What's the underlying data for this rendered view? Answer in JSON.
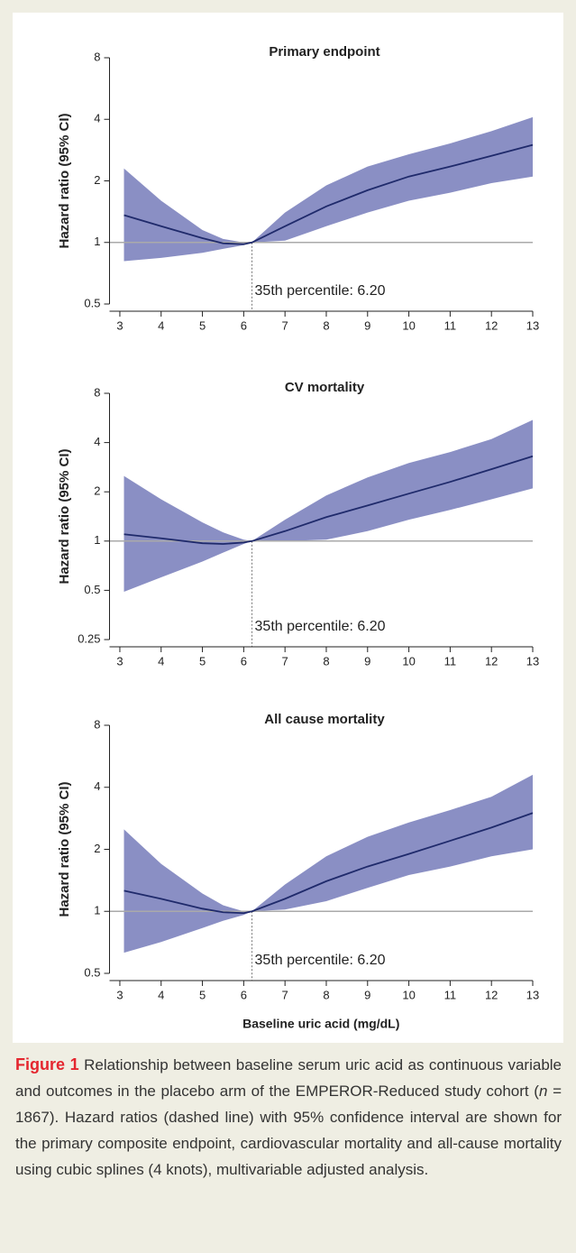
{
  "chart_data": [
    {
      "type": "spline-band",
      "title": "Primary endpoint",
      "ylabel": "Hazard ratio (95% CI)",
      "x": [
        3.1,
        4,
        5,
        5.5,
        6,
        6.2,
        7,
        8,
        9,
        10,
        11,
        12,
        13
      ],
      "values": [
        1.36,
        1.2,
        1.05,
        0.99,
        0.98,
        1,
        1.2,
        1.5,
        1.8,
        2.1,
        2.35,
        2.65,
        3.0
      ],
      "upper": [
        2.3,
        1.6,
        1.15,
        1.04,
        1.0,
        1,
        1.4,
        1.9,
        2.35,
        2.7,
        3.05,
        3.5,
        4.1
      ],
      "lower": [
        0.81,
        0.84,
        0.89,
        0.93,
        0.97,
        1,
        1.02,
        1.2,
        1.4,
        1.6,
        1.75,
        1.95,
        2.1
      ],
      "line_color": "#1f2a6b",
      "band_color": "#8a8fc4",
      "xlim": [
        2.75,
        13
      ],
      "xticks": [
        3,
        4,
        5,
        6,
        7,
        8,
        9,
        10,
        11,
        12,
        13
      ],
      "ylim": [
        0.5,
        8
      ],
      "yticks": [
        0.5,
        1,
        2,
        4,
        8
      ],
      "ylog": true,
      "reference_y": 1,
      "annotation": {
        "text": "35th percentile: 6.20",
        "x": 6.2
      }
    },
    {
      "type": "spline-band",
      "title": "CV mortality",
      "ylabel": "Hazard ratio (95% CI)",
      "x": [
        3.1,
        4,
        5,
        5.5,
        6,
        6.2,
        7,
        8,
        9,
        10,
        11,
        12,
        13
      ],
      "values": [
        1.1,
        1.04,
        0.97,
        0.96,
        0.98,
        1,
        1.15,
        1.4,
        1.65,
        1.95,
        2.3,
        2.75,
        3.3
      ],
      "upper": [
        2.5,
        1.8,
        1.3,
        1.13,
        1.02,
        1,
        1.35,
        1.9,
        2.45,
        3.0,
        3.5,
        4.2,
        5.5
      ],
      "lower": [
        0.49,
        0.6,
        0.75,
        0.85,
        0.96,
        1,
        1.0,
        1.02,
        1.15,
        1.35,
        1.55,
        1.8,
        2.1
      ],
      "line_color": "#1f2a6b",
      "band_color": "#8a8fc4",
      "xlim": [
        2.75,
        13
      ],
      "xticks": [
        3,
        4,
        5,
        6,
        7,
        8,
        9,
        10,
        11,
        12,
        13
      ],
      "ylim": [
        0.25,
        8
      ],
      "yticks": [
        0.25,
        0.5,
        1,
        2,
        4,
        8
      ],
      "ylog": true,
      "reference_y": 1,
      "annotation": {
        "text": "35th percentile: 6.20",
        "x": 6.2
      }
    },
    {
      "type": "spline-band",
      "title": "All cause mortality",
      "ylabel": "Hazard ratio (95% CI)",
      "xlabel": "Baseline uric acid (mg/dL)",
      "x": [
        3.1,
        4,
        5,
        5.5,
        6,
        6.2,
        7,
        8,
        9,
        10,
        11,
        12,
        13
      ],
      "values": [
        1.26,
        1.15,
        1.03,
        0.99,
        0.98,
        1,
        1.15,
        1.4,
        1.65,
        1.9,
        2.2,
        2.55,
        3.0
      ],
      "upper": [
        2.5,
        1.7,
        1.22,
        1.07,
        1.0,
        1,
        1.35,
        1.85,
        2.3,
        2.7,
        3.1,
        3.6,
        4.6
      ],
      "lower": [
        0.63,
        0.71,
        0.83,
        0.9,
        0.96,
        1,
        1.02,
        1.12,
        1.3,
        1.5,
        1.65,
        1.85,
        2.0
      ],
      "line_color": "#1f2a6b",
      "band_color": "#8a8fc4",
      "xlim": [
        2.75,
        13
      ],
      "xticks": [
        3,
        4,
        5,
        6,
        7,
        8,
        9,
        10,
        11,
        12,
        13
      ],
      "ylim": [
        0.5,
        8
      ],
      "yticks": [
        0.5,
        1,
        2,
        4,
        8
      ],
      "ylog": true,
      "reference_y": 1,
      "annotation": {
        "text": "35th percentile: 6.20",
        "x": 6.2
      }
    }
  ],
  "caption": {
    "label": "Figure 1",
    "text_before": "Relationship between baseline serum uric acid as continuous variable and outcomes in the placebo arm of the EMPEROR-Reduced study cohort (",
    "italic": "n",
    "text_after": " = 1867). Hazard ratios (dashed line) with 95% confidence interval are shown for the primary composite endpoint, cardiovascular mortality and all-cause mortality using cubic splines (4 knots), multivariable adjusted analysis."
  }
}
